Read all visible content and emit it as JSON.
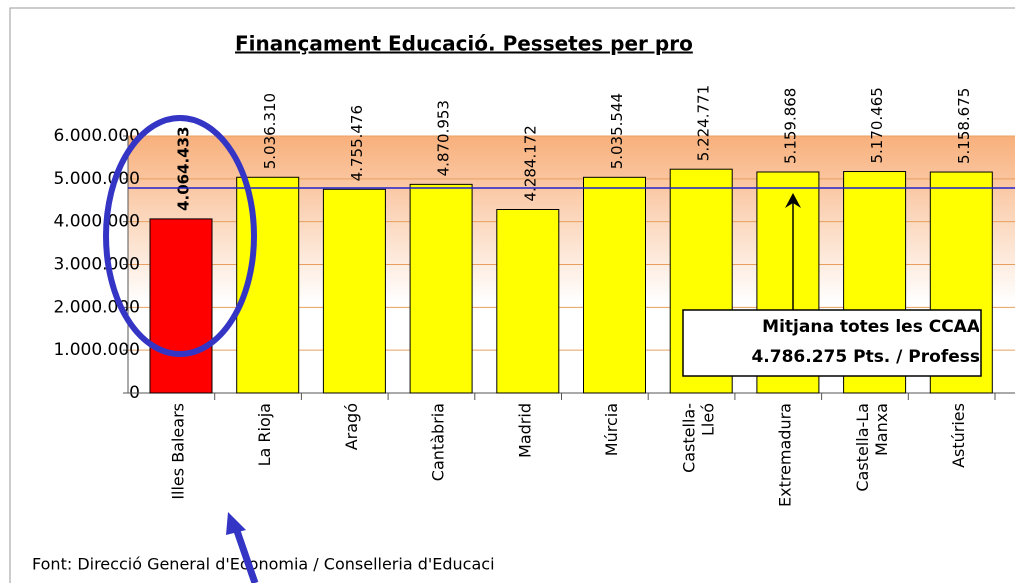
{
  "chart_data": {
    "type": "bar",
    "title": "Finançament Educació. Pessetes per pro",
    "categories": [
      "Illes Balears",
      "La Rioja",
      "Aragó",
      "Cantàbria",
      "Madrid",
      "Múrcia",
      "Castella-\nLleó",
      "Extremadura",
      "Castella-La\nManxa",
      "Astúries"
    ],
    "values": [
      4064433,
      5036310,
      4755476,
      4870953,
      4284172,
      5035544,
      5224771,
      5159868,
      5170465,
      5158675
    ],
    "value_labels": [
      "4.064.433",
      "5.036.310",
      "4.755.476",
      "4.870.953",
      "4.284.172",
      "5.035.544",
      "5.224.771",
      "5.159.868",
      "5.170.465",
      "5.158.675"
    ],
    "colors": [
      "#ff0000",
      "#ffff00",
      "#ffff00",
      "#ffff00",
      "#ffff00",
      "#ffff00",
      "#ffff00",
      "#ffff00",
      "#ffff00",
      "#ffff00"
    ],
    "ylim": [
      0,
      6000000
    ],
    "yticks": [
      {
        "value": 0,
        "label": "0"
      },
      {
        "value": 1000000,
        "label": "1.000.000"
      },
      {
        "value": 2000000,
        "label": "2.000.000"
      },
      {
        "value": 3000000,
        "label": "3.000.000"
      },
      {
        "value": 4000000,
        "label": "4.000.000"
      },
      {
        "value": 5000000,
        "label": "5.000.000"
      },
      {
        "value": 6000000,
        "label": "6.000.000"
      }
    ],
    "grid": true,
    "reference_line": {
      "value": 4786275,
      "color": "#2222cc"
    },
    "annotation": [
      "Mitjana totes les CCAA",
      "4.786.275 Pts. / Profess"
    ],
    "footnote": "Font: Direcció General d'Economia / Conselleria d'Educaci"
  }
}
